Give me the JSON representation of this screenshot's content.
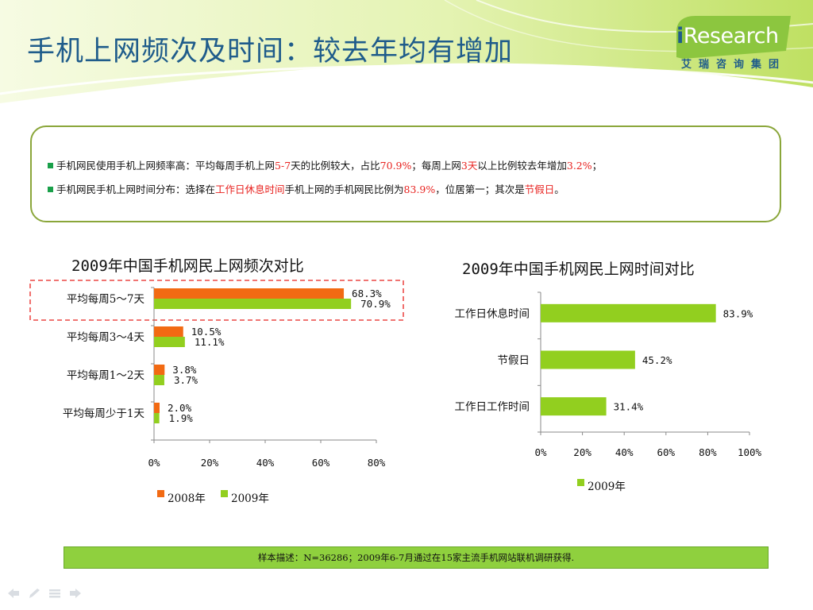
{
  "title": "手机上网频次及时间：较去年均有增加",
  "logo": {
    "i": "i",
    "word": "Research",
    "subtitle": "艾瑞咨询集团"
  },
  "summary": {
    "line1": [
      {
        "t": "手机网民使用手机上网频率高：平均每周手机上网",
        "hl": false
      },
      {
        "t": "5-7",
        "hl": true
      },
      {
        "t": "天的比例较大，占比",
        "hl": false
      },
      {
        "t": "70.9%",
        "hl": true
      },
      {
        "t": "；每周上网",
        "hl": false
      },
      {
        "t": "3天",
        "hl": true
      },
      {
        "t": "以上比例较去年增加",
        "hl": false
      },
      {
        "t": "3.2%",
        "hl": true
      },
      {
        "t": "；",
        "hl": false
      }
    ],
    "line2": [
      {
        "t": "手机网民手机上网时间分布：选择在",
        "hl": false
      },
      {
        "t": "工作日休息时间",
        "hl": true
      },
      {
        "t": "手机上网的手机网民比例为",
        "hl": false
      },
      {
        "t": "83.9%",
        "hl": true
      },
      {
        "t": "，位居第一；其次是",
        "hl": false
      },
      {
        "t": "节假日",
        "hl": true
      },
      {
        "t": "。",
        "hl": false
      }
    ]
  },
  "colors": {
    "orange": "#f26a13",
    "green": "#92cf1f",
    "highlight_red": "#e8221f",
    "title_blue": "#1f5c8b",
    "footer_green": "#8fd03e"
  },
  "chart_data": [
    {
      "type": "bar",
      "orientation": "horizontal",
      "title": "2009年中国手机网民上网频次对比",
      "categories": [
        "平均每周5～7天",
        "平均每周3～4天",
        "平均每周1～2天",
        "平均每周少于1天"
      ],
      "series": [
        {
          "name": "2008年",
          "color": "#f26a13",
          "values": [
            68.3,
            10.5,
            3.8,
            2.0
          ]
        },
        {
          "name": "2009年",
          "color": "#92cf1f",
          "values": [
            70.9,
            11.1,
            3.7,
            1.9
          ]
        }
      ],
      "value_labels": [
        [
          "68.3%",
          "10.5%",
          "3.8%",
          "2.0%"
        ],
        [
          "70.9%",
          "11.1%",
          "3.7%",
          "1.9%"
        ]
      ],
      "xlim": [
        0,
        80
      ],
      "xticks": [
        "0%",
        "20%",
        "40%",
        "60%",
        "80%"
      ],
      "highlighted_category": "平均每周5～7天",
      "legend": "bottom"
    },
    {
      "type": "bar",
      "orientation": "horizontal",
      "title": "2009年中国手机网民上网时间对比",
      "categories": [
        "工作日休息时间",
        "节假日",
        "工作日工作时间"
      ],
      "series": [
        {
          "name": "2009年",
          "color": "#92cf1f",
          "values": [
            83.9,
            45.2,
            31.4
          ]
        }
      ],
      "value_labels": [
        [
          "83.9%",
          "45.2%",
          "31.4%"
        ]
      ],
      "xlim": [
        0,
        100
      ],
      "xticks": [
        "0%",
        "20%",
        "40%",
        "60%",
        "80%",
        "100%"
      ],
      "legend": "bottom"
    }
  ],
  "footer": "样本描述：N=36286；2009年6-7月通过在15家主流手机网站联机调研获得."
}
